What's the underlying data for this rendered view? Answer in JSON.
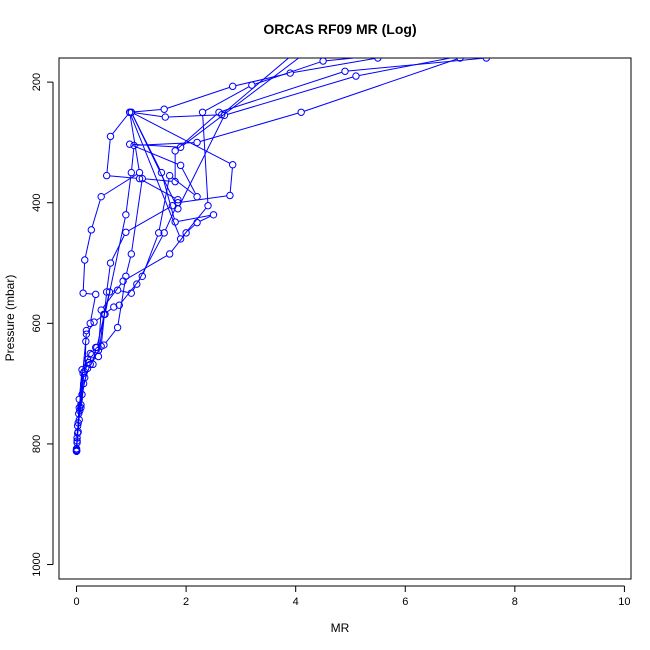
{
  "chart_data": {
    "type": "line",
    "title": "ORCAS RF09 MR (Log)",
    "xlabel": "MR",
    "ylabel": "Pressure (mbar)",
    "xlim": [
      0,
      10
    ],
    "ylim": [
      1000,
      150
    ],
    "y_reversed": true,
    "x_ticks": [
      0,
      2,
      4,
      6,
      8,
      10
    ],
    "y_ticks": [
      200,
      400,
      600,
      800,
      1000
    ],
    "grid": false,
    "legend": "none",
    "color": "#0000ff",
    "marker": "open-circle",
    "series": [
      {
        "values": [
          [
            0.0,
            812
          ],
          [
            0.0,
            808
          ],
          [
            0.01,
            795
          ],
          [
            0.03,
            780
          ],
          [
            0.05,
            760
          ],
          [
            0.08,
            735
          ],
          [
            0.13,
            700
          ],
          [
            0.25,
            668
          ],
          [
            0.45,
            638
          ],
          [
            0.55,
            548
          ],
          [
            0.62,
            500
          ],
          [
            0.9,
            449
          ],
          [
            1.75,
            405
          ],
          [
            1.85,
            395
          ],
          [
            1.15,
            360
          ],
          [
            0.55,
            355
          ],
          [
            0.62,
            290
          ],
          [
            0.97,
            250
          ],
          [
            1.6,
            245
          ],
          [
            2.85,
            207
          ],
          [
            3.9,
            185
          ],
          [
            5.5,
            160
          ]
        ]
      },
      {
        "values": [
          [
            0.0,
            811
          ],
          [
            0.01,
            790
          ],
          [
            0.06,
            745
          ],
          [
            0.14,
            680
          ],
          [
            0.22,
            665
          ],
          [
            0.4,
            655
          ],
          [
            0.5,
            585
          ],
          [
            0.68,
            573
          ],
          [
            0.78,
            570
          ],
          [
            1.2,
            522
          ],
          [
            1.5,
            450
          ],
          [
            1.7,
            355
          ],
          [
            2.2,
            390
          ],
          [
            1.9,
            338
          ],
          [
            0.97,
            303
          ],
          [
            1.9,
            308
          ],
          [
            4.2,
            150
          ]
        ]
      },
      {
        "values": [
          [
            0.0,
            810
          ],
          [
            0.02,
            770
          ],
          [
            0.1,
            718
          ],
          [
            0.2,
            675
          ],
          [
            0.3,
            668
          ],
          [
            0.35,
            640
          ],
          [
            0.5,
            636
          ],
          [
            0.75,
            607
          ],
          [
            0.9,
            522
          ],
          [
            1.0,
            485
          ],
          [
            1.2,
            360
          ],
          [
            1.8,
            365
          ],
          [
            1.8,
            314
          ],
          [
            2.6,
            250
          ],
          [
            4.9,
            182
          ],
          [
            7.48,
            160
          ]
        ]
      },
      {
        "values": [
          [
            0.0,
            812
          ],
          [
            0.02,
            782
          ],
          [
            0.05,
            726
          ],
          [
            0.1,
            677
          ],
          [
            0.25,
            650
          ],
          [
            0.37,
            640
          ],
          [
            0.6,
            548
          ],
          [
            0.75,
            545
          ],
          [
            1.0,
            550
          ],
          [
            1.1,
            535
          ],
          [
            1.6,
            450
          ],
          [
            1.85,
            400
          ],
          [
            2.8,
            388
          ],
          [
            2.85,
            337
          ],
          [
            1.0,
            250
          ],
          [
            1.85,
            410
          ],
          [
            2.7,
            255
          ],
          [
            5.1,
            190
          ],
          [
            7.4,
            150
          ]
        ]
      },
      {
        "values": [
          [
            0.0,
            812
          ],
          [
            0.01,
            798
          ],
          [
            0.04,
            750
          ],
          [
            0.12,
            683
          ],
          [
            0.2,
            660
          ],
          [
            0.28,
            652
          ],
          [
            0.4,
            645
          ],
          [
            0.45,
            578
          ],
          [
            0.85,
            530
          ],
          [
            1.7,
            485
          ],
          [
            2.0,
            450
          ],
          [
            2.2,
            433
          ],
          [
            2.5,
            420
          ],
          [
            1.8,
            432
          ],
          [
            1.55,
            350
          ],
          [
            1.0,
            250
          ],
          [
            1.62,
            258
          ],
          [
            2.65,
            254
          ],
          [
            4.0,
            150
          ]
        ]
      },
      {
        "values": [
          [
            0.0,
            812
          ],
          [
            0.03,
            765
          ],
          [
            0.08,
            740
          ],
          [
            0.15,
            690
          ],
          [
            0.17,
            630
          ],
          [
            0.18,
            612
          ],
          [
            0.25,
            600
          ],
          [
            0.35,
            552
          ],
          [
            0.12,
            550
          ],
          [
            0.15,
            495
          ],
          [
            0.27,
            445
          ],
          [
            0.45,
            390
          ],
          [
            1.15,
            350
          ],
          [
            0.97,
            250
          ],
          [
            1.9,
            460
          ],
          [
            2.4,
            405
          ],
          [
            2.3,
            250
          ],
          [
            3.2,
            205
          ],
          [
            4.5,
            165
          ],
          [
            6.2,
            150
          ]
        ]
      },
      {
        "values": [
          [
            0.0,
            810
          ],
          [
            0.05,
            740
          ],
          [
            0.18,
            618
          ],
          [
            0.32,
            598
          ],
          [
            0.52,
            585
          ],
          [
            0.9,
            420
          ],
          [
            1.0,
            350
          ],
          [
            1.05,
            305
          ],
          [
            2.2,
            300
          ],
          [
            4.1,
            250
          ],
          [
            7.0,
            160
          ]
        ]
      }
    ]
  }
}
